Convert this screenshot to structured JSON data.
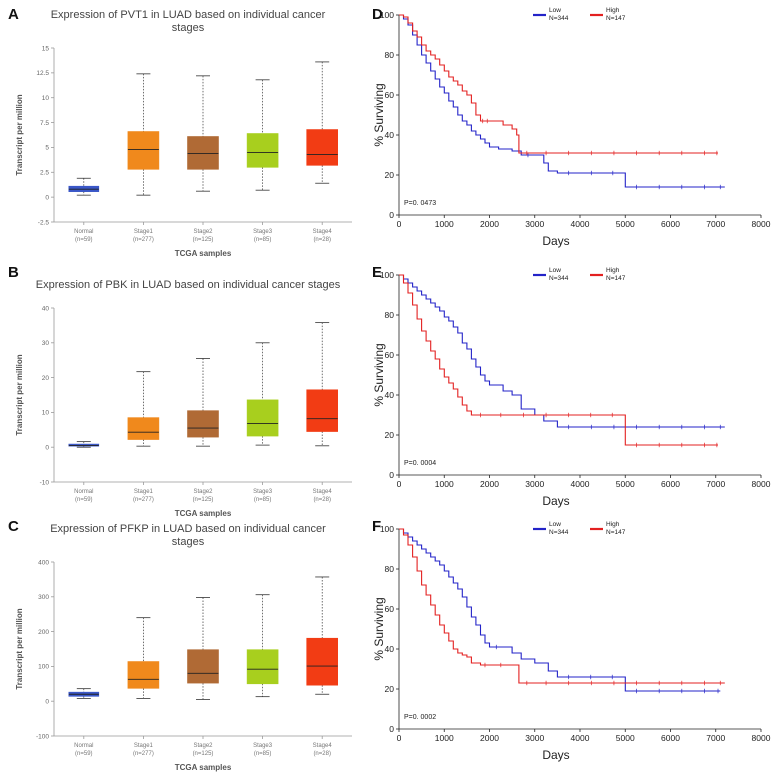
{
  "panel_labels": [
    "A",
    "B",
    "C",
    "D",
    "E",
    "F"
  ],
  "chart_data": [
    {
      "id": "A",
      "type": "box",
      "title_lines": [
        "Expression of PVT1 in LUAD based on individual cancer",
        "stages"
      ],
      "ylabel": "Transcript per million",
      "xlabel": "TCGA samples",
      "ylim": [
        -2.5,
        15
      ],
      "yticks": [
        "-2.5",
        "0",
        "2.5",
        "5",
        "7.5",
        "10",
        "12.5",
        "15"
      ],
      "ytick_values": [
        -2.5,
        0,
        2.5,
        5,
        7.5,
        10,
        12.5,
        15
      ],
      "categories": [
        {
          "name": "Normal",
          "n": "(n=59)",
          "color": "#3a57c8",
          "min": 0.2,
          "q1": 0.55,
          "median": 0.8,
          "q3": 1.1,
          "max": 1.9
        },
        {
          "name": "Stage1",
          "n": "(n=277)",
          "color": "#f0891c",
          "min": 0.2,
          "q1": 2.8,
          "median": 4.8,
          "q3": 6.6,
          "max": 12.4
        },
        {
          "name": "Stage2",
          "n": "(n=125)",
          "color": "#b06a35",
          "min": 0.6,
          "q1": 2.8,
          "median": 4.4,
          "q3": 6.1,
          "max": 12.2
        },
        {
          "name": "Stage3",
          "n": "(n=85)",
          "color": "#a8cf1e",
          "min": 0.7,
          "q1": 3.0,
          "median": 4.5,
          "q3": 6.4,
          "max": 11.8
        },
        {
          "name": "Stage4",
          "n": "(n=28)",
          "color": "#f23c14",
          "min": 1.4,
          "q1": 3.2,
          "median": 4.3,
          "q3": 6.8,
          "max": 13.6
        }
      ]
    },
    {
      "id": "B",
      "type": "box",
      "title_lines": [
        "Expression of PBK in LUAD based on individual cancer stages"
      ],
      "ylabel": "Transcript per million",
      "xlabel": "TCGA samples",
      "ylim": [
        -10,
        40
      ],
      "yticks": [
        "-10",
        "0",
        "10",
        "20",
        "30",
        "40"
      ],
      "ytick_values": [
        -10,
        0,
        10,
        20,
        30,
        40
      ],
      "categories": [
        {
          "name": "Normal",
          "n": "(n=59)",
          "color": "#3a57c8",
          "min": 0.0,
          "q1": 0.3,
          "median": 0.5,
          "q3": 0.9,
          "max": 1.6
        },
        {
          "name": "Stage1",
          "n": "(n=277)",
          "color": "#f0891c",
          "min": 0.3,
          "q1": 2.2,
          "median": 4.3,
          "q3": 8.5,
          "max": 21.7
        },
        {
          "name": "Stage2",
          "n": "(n=125)",
          "color": "#b06a35",
          "min": 0.3,
          "q1": 2.9,
          "median": 5.5,
          "q3": 10.5,
          "max": 25.5
        },
        {
          "name": "Stage3",
          "n": "(n=85)",
          "color": "#a8cf1e",
          "min": 0.6,
          "q1": 3.2,
          "median": 6.8,
          "q3": 13.6,
          "max": 30.0
        },
        {
          "name": "Stage4",
          "n": "(n=28)",
          "color": "#f23c14",
          "min": 0.4,
          "q1": 4.5,
          "median": 8.2,
          "q3": 16.5,
          "max": 35.8
        }
      ]
    },
    {
      "id": "C",
      "type": "box",
      "title_lines": [
        "Expression of PFKP in LUAD based on individual cancer",
        "stages"
      ],
      "ylabel": "Transcript per million",
      "xlabel": "TCGA samples",
      "ylim": [
        -100,
        400
      ],
      "yticks": [
        "-100",
        "0",
        "100",
        "200",
        "300",
        "400"
      ],
      "ytick_values": [
        -100,
        0,
        100,
        200,
        300,
        400
      ],
      "categories": [
        {
          "name": "Normal",
          "n": "(n=59)",
          "color": "#3a57c8",
          "min": 8,
          "q1": 14,
          "median": 20,
          "q3": 26,
          "max": 36
        },
        {
          "name": "Stage1",
          "n": "(n=277)",
          "color": "#f0891c",
          "min": 8,
          "q1": 37,
          "median": 63,
          "q3": 114,
          "max": 240
        },
        {
          "name": "Stage2",
          "n": "(n=125)",
          "color": "#b06a35",
          "min": 5,
          "q1": 52,
          "median": 80,
          "q3": 148,
          "max": 298
        },
        {
          "name": "Stage3",
          "n": "(n=85)",
          "color": "#a8cf1e",
          "min": 13,
          "q1": 50,
          "median": 92,
          "q3": 148,
          "max": 306
        },
        {
          "name": "Stage4",
          "n": "(n=28)",
          "color": "#f23c14",
          "min": 20,
          "q1": 46,
          "median": 101,
          "q3": 181,
          "max": 357
        }
      ]
    },
    {
      "id": "D",
      "type": "line",
      "ylabel": "% Surviving",
      "xlabel": "Days",
      "xlim": [
        0,
        8000
      ],
      "ylim": [
        0,
        100
      ],
      "xticks": [
        "0",
        "1000",
        "2000",
        "3000",
        "4000",
        "5000",
        "6000",
        "7000",
        "8000"
      ],
      "xtick_values": [
        0,
        1000,
        2000,
        3000,
        4000,
        5000,
        6000,
        7000,
        8000
      ],
      "yticks": [
        "0",
        "20",
        "40",
        "60",
        "80",
        "100"
      ],
      "ytick_values": [
        0,
        20,
        40,
        60,
        80,
        100
      ],
      "pvalue": "P=0. 0473",
      "series": [
        {
          "name": "Low",
          "n": "N=344",
          "color": "#2323c8",
          "x": [
            0,
            100,
            200,
            300,
            400,
            500,
            600,
            700,
            800,
            900,
            1000,
            1100,
            1200,
            1300,
            1400,
            1500,
            1600,
            1700,
            1800,
            1900,
            2000,
            2200,
            2500,
            2700,
            3000,
            3200,
            3300,
            3500,
            4000,
            4500,
            4950,
            5000,
            6000,
            7000,
            7200
          ],
          "y": [
            100,
            98,
            95,
            90,
            85,
            80,
            76,
            72,
            68,
            64,
            61,
            57,
            54,
            50,
            47,
            45,
            42,
            40,
            38,
            36,
            34,
            33,
            32,
            30,
            30,
            26,
            22,
            21,
            21,
            21,
            21,
            14,
            14,
            14,
            14
          ]
        },
        {
          "name": "High",
          "n": "N=147",
          "color": "#e32020",
          "x": [
            0,
            100,
            200,
            300,
            400,
            500,
            600,
            700,
            800,
            900,
            1000,
            1100,
            1200,
            1300,
            1400,
            1500,
            1600,
            1700,
            1800,
            1900,
            2000,
            2300,
            2500,
            2600,
            2650,
            3000,
            4000,
            5000,
            6000,
            7000,
            7050
          ],
          "y": [
            100,
            99,
            96,
            92,
            89,
            85,
            82,
            80,
            78,
            75,
            72,
            69,
            67,
            65,
            62,
            60,
            56,
            50,
            47,
            47,
            47,
            45,
            43,
            40,
            31,
            31,
            31,
            31,
            31,
            31,
            31
          ]
        }
      ]
    },
    {
      "id": "E",
      "type": "line",
      "ylabel": "% Surviving",
      "xlabel": "Days",
      "xlim": [
        0,
        8000
      ],
      "ylim": [
        0,
        100
      ],
      "xticks": [
        "0",
        "1000",
        "2000",
        "3000",
        "4000",
        "5000",
        "6000",
        "7000",
        "8000"
      ],
      "xtick_values": [
        0,
        1000,
        2000,
        3000,
        4000,
        5000,
        6000,
        7000,
        8000
      ],
      "yticks": [
        "0",
        "20",
        "40",
        "60",
        "80",
        "100"
      ],
      "ytick_values": [
        0,
        20,
        40,
        60,
        80,
        100
      ],
      "pvalue": "P=0. 0004",
      "series": [
        {
          "name": "Low",
          "n": "N=344",
          "color": "#2323c8",
          "x": [
            0,
            100,
            200,
            300,
            400,
            500,
            600,
            700,
            800,
            900,
            1000,
            1100,
            1200,
            1300,
            1400,
            1500,
            1600,
            1700,
            1800,
            1900,
            2000,
            2300,
            2500,
            2700,
            3000,
            3200,
            3500,
            4000,
            5000,
            6000,
            7000,
            7200
          ],
          "y": [
            100,
            98,
            96,
            94,
            92,
            90,
            88,
            86,
            84,
            82,
            79,
            77,
            74,
            71,
            66,
            63,
            58,
            54,
            50,
            47,
            45,
            42,
            40,
            33,
            30,
            27,
            24,
            24,
            24,
            24,
            24,
            24
          ]
        },
        {
          "name": "High",
          "n": "N=147",
          "color": "#e32020",
          "x": [
            0,
            100,
            200,
            300,
            400,
            500,
            600,
            700,
            800,
            900,
            1000,
            1100,
            1200,
            1300,
            1400,
            1500,
            1600,
            2000,
            3000,
            4000,
            4950,
            5000,
            6000,
            7000,
            7050
          ],
          "y": [
            100,
            96,
            91,
            85,
            78,
            72,
            67,
            62,
            58,
            53,
            49,
            46,
            43,
            39,
            35,
            32,
            30,
            30,
            30,
            30,
            30,
            15,
            15,
            15,
            15
          ]
        }
      ]
    },
    {
      "id": "F",
      "type": "line",
      "ylabel": "% Surviving",
      "xlabel": "Days",
      "xlim": [
        0,
        8000
      ],
      "ylim": [
        0,
        100
      ],
      "xticks": [
        "0",
        "1000",
        "2000",
        "3000",
        "4000",
        "5000",
        "6000",
        "7000",
        "8000"
      ],
      "xtick_values": [
        0,
        1000,
        2000,
        3000,
        4000,
        5000,
        6000,
        7000,
        8000
      ],
      "yticks": [
        "0",
        "20",
        "40",
        "60",
        "80",
        "100"
      ],
      "ytick_values": [
        0,
        20,
        40,
        60,
        80,
        100
      ],
      "pvalue": "P=0. 0002",
      "series": [
        {
          "name": "Low",
          "n": "N=344",
          "color": "#2323c8",
          "x": [
            0,
            100,
            200,
            300,
            400,
            500,
            600,
            700,
            800,
            900,
            1000,
            1100,
            1200,
            1300,
            1400,
            1500,
            1600,
            1700,
            1800,
            1900,
            2000,
            2300,
            2500,
            2700,
            3000,
            3300,
            3500,
            4000,
            4950,
            5000,
            6000,
            7000,
            7100
          ],
          "y": [
            100,
            98,
            96,
            94,
            92,
            90,
            88,
            86,
            84,
            82,
            79,
            76,
            73,
            70,
            66,
            61,
            56,
            52,
            47,
            43,
            41,
            41,
            38,
            35,
            33,
            29,
            26,
            26,
            26,
            19,
            19,
            19,
            19
          ]
        },
        {
          "name": "High",
          "n": "N=147",
          "color": "#e32020",
          "x": [
            0,
            100,
            200,
            300,
            400,
            500,
            600,
            700,
            800,
            900,
            1000,
            1100,
            1200,
            1300,
            1400,
            1500,
            1600,
            1800,
            2000,
            2500,
            2650,
            3000,
            4000,
            5000,
            6000,
            7000,
            7200
          ],
          "y": [
            100,
            97,
            92,
            86,
            79,
            72,
            67,
            62,
            57,
            52,
            48,
            44,
            40,
            38,
            37,
            36,
            33,
            32,
            32,
            32,
            23,
            23,
            23,
            23,
            23,
            23,
            23
          ]
        }
      ]
    }
  ]
}
